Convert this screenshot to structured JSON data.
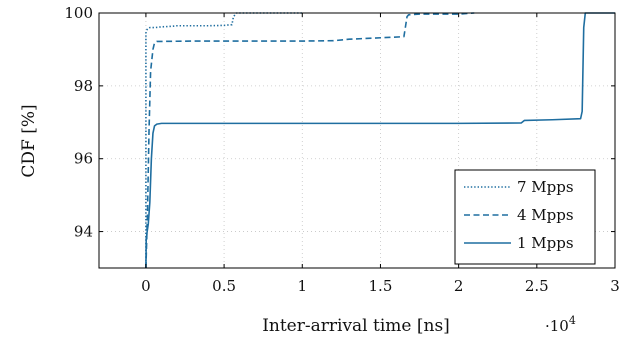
{
  "chart_data": {
    "type": "line",
    "xlabel": "Inter-arrival time [ns]",
    "ylabel": "CDF [%]",
    "x_multiplier_base": "·10",
    "x_multiplier_exp": "4",
    "xlim": [
      -3000,
      30000
    ],
    "ylim": [
      93,
      100
    ],
    "x_ticks": [
      0,
      5000,
      10000,
      15000,
      20000,
      25000,
      30000
    ],
    "x_tick_labels": [
      "0",
      "0.5",
      "1",
      "1.5",
      "2",
      "2.5",
      "3"
    ],
    "y_ticks": [
      94,
      96,
      98,
      100
    ],
    "y_tick_labels": [
      "94",
      "96",
      "98",
      "100"
    ],
    "grid": true,
    "legend_position": "bottom-right",
    "color": "#1f6ea0",
    "series": [
      {
        "name": "7 Mpps",
        "style": "dotted",
        "x": [
          0,
          0,
          30,
          80,
          150,
          250,
          400,
          600,
          1000,
          1500,
          2000,
          3000,
          4000,
          5000,
          5500,
          5600,
          5800,
          7000,
          10000
        ],
        "y": [
          93,
          99.45,
          99.5,
          99.55,
          99.58,
          99.6,
          99.6,
          99.6,
          99.62,
          99.63,
          99.65,
          99.65,
          99.65,
          99.66,
          99.68,
          99.9,
          100,
          100,
          100
        ]
      },
      {
        "name": "4 Mpps",
        "style": "dashed",
        "x": [
          0,
          100,
          200,
          300,
          350,
          450,
          550,
          700,
          1000,
          3000,
          10000,
          12000,
          13000,
          16500,
          16700,
          16800,
          17500,
          20000,
          21000
        ],
        "y": [
          93,
          94.5,
          96.8,
          98.4,
          98.6,
          99.0,
          99.18,
          99.22,
          99.22,
          99.23,
          99.23,
          99.24,
          99.28,
          99.35,
          99.9,
          99.95,
          99.97,
          99.97,
          100
        ]
      },
      {
        "name": "1 Mpps",
        "style": "solid",
        "x": [
          0,
          20,
          80,
          150,
          250,
          350,
          450,
          550,
          700,
          1000,
          5000,
          10000,
          20000,
          24000,
          24200,
          26000,
          27800,
          27900,
          28000,
          28100,
          28300,
          30000
        ],
        "y": [
          93,
          93.8,
          94.0,
          94.2,
          94.8,
          96.0,
          96.7,
          96.9,
          96.95,
          96.97,
          96.97,
          96.97,
          96.97,
          96.98,
          97.05,
          97.07,
          97.1,
          97.3,
          99.6,
          100,
          100,
          100
        ]
      }
    ]
  }
}
